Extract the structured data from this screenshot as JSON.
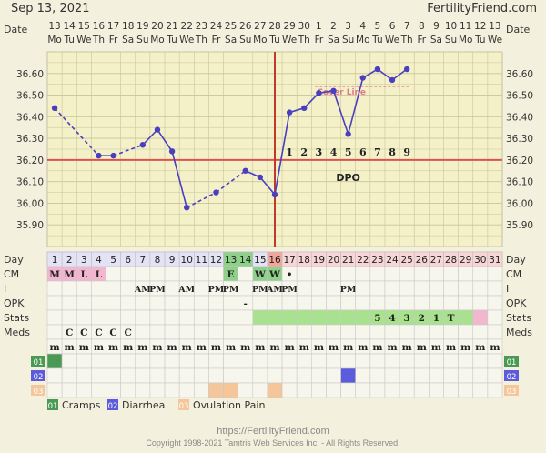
{
  "header": {
    "date": "Sep 13, 2021",
    "brand": "FertilityFriend.com"
  },
  "labels": {
    "date": "Date",
    "day": "Day",
    "cm": "CM",
    "i": "I",
    "opk": "OPK",
    "stats": "Stats",
    "meds": "Meds",
    "dpo": "DPO",
    "coverline": "Cover Line"
  },
  "chart_data": {
    "type": "line",
    "title": "",
    "ylabel": "",
    "ylim": [
      35.8,
      36.7
    ],
    "yticks": [
      "35.90",
      "36.00",
      "36.10",
      "36.20",
      "36.30",
      "36.40",
      "36.50",
      "36.60"
    ],
    "grid": true,
    "cycle_days": [
      1,
      2,
      3,
      4,
      5,
      6,
      7,
      8,
      9,
      10,
      11,
      12,
      13,
      14,
      15,
      16,
      17,
      18,
      19,
      20,
      21,
      22,
      23,
      24,
      25,
      26,
      27,
      28,
      29,
      30,
      31
    ],
    "dates": [
      "13",
      "14",
      "15",
      "16",
      "17",
      "18",
      "19",
      "20",
      "21",
      "22",
      "23",
      "24",
      "25",
      "26",
      "27",
      "28",
      "29",
      "30",
      "1",
      "2",
      "3",
      "4",
      "5",
      "6",
      "7",
      "8",
      "9",
      "10",
      "11",
      "12",
      "13"
    ],
    "weekdays": [
      "Mo",
      "Tu",
      "We",
      "Th",
      "Fr",
      "Sa",
      "Su",
      "Mo",
      "Tu",
      "We",
      "Th",
      "Fr",
      "Sa",
      "Su",
      "Mo",
      "Tu",
      "We",
      "Th",
      "Fr",
      "Sa",
      "Su",
      "Mo",
      "Tu",
      "We",
      "Th",
      "Fr",
      "Sa",
      "Su",
      "Mo",
      "Tu",
      "We"
    ],
    "temps": [
      36.44,
      null,
      null,
      36.22,
      36.22,
      null,
      36.27,
      36.34,
      36.24,
      35.98,
      null,
      36.05,
      null,
      36.15,
      36.12,
      36.04,
      36.42,
      36.44,
      36.51,
      36.52,
      36.32,
      36.58,
      36.62,
      36.57,
      36.62,
      null,
      null,
      null,
      null,
      null,
      null
    ],
    "coverline": 36.2,
    "ovulation_day": 16,
    "dpo_labels": [
      "1",
      "2",
      "3",
      "4",
      "5",
      "6",
      "7",
      "8",
      "9"
    ],
    "dpo_start_day": 17
  },
  "rows": {
    "cm": [
      "M",
      "M",
      "L",
      "L",
      "",
      "",
      "",
      "",
      "",
      "",
      "",
      "",
      "E",
      "",
      "W",
      "W",
      "•",
      "",
      "",
      "",
      "",
      "",
      "",
      "",
      "",
      "",
      "",
      "",
      "",
      "",
      ""
    ],
    "i": [
      "",
      "",
      "",
      "",
      "",
      "",
      "AM",
      "PM",
      "",
      "AM",
      "",
      "PM",
      "PM",
      "",
      "PM",
      "AM",
      "PM",
      "",
      "",
      "",
      "PM",
      "",
      "",
      "",
      "",
      "",
      "",
      "",
      "",
      "",
      ""
    ],
    "opk": [
      "",
      "",
      "",
      "",
      "",
      "",
      "",
      "",
      "",
      "",
      "",
      "",
      "",
      "-",
      "",
      "",
      "",
      "",
      "",
      "",
      "",
      "",
      "",
      "",
      "",
      "",
      "",
      "",
      "",
      "",
      ""
    ],
    "stats": [
      "",
      "",
      "",
      "",
      "",
      "",
      "",
      "",
      "",
      "",
      "",
      "",
      "",
      "",
      "",
      "",
      "",
      "",
      "",
      "",
      "",
      "",
      "5",
      "4",
      "3",
      "2",
      "1",
      "T",
      "",
      "",
      ""
    ],
    "meds": [
      "",
      "C",
      "C",
      "C",
      "C",
      "C",
      "",
      "",
      "",
      "",
      "",
      "",
      "",
      "",
      "",
      "",
      "",
      "",
      "",
      "",
      "",
      "",
      "",
      "",
      "",
      "",
      "",
      "",
      "",
      "",
      ""
    ],
    "m": [
      "m",
      "m",
      "m",
      "m",
      "m",
      "m",
      "m",
      "m",
      "m",
      "m",
      "m",
      "m",
      "m",
      "m",
      "m",
      "m",
      "m",
      "m",
      "m",
      "m",
      "m",
      "m",
      "m",
      "m",
      "m",
      "m",
      "m",
      "m",
      "m",
      "m",
      "m"
    ]
  },
  "legend": [
    {
      "code": "01",
      "label": "Cramps",
      "color": "#4a9a55"
    },
    {
      "code": "02",
      "label": "Diarrhea",
      "color": "#5b5bdc"
    },
    {
      "code": "03",
      "label": "Ovulation Pain",
      "color": "#f5c69a"
    }
  ],
  "footer": {
    "url": "https://FertilityFriend.com",
    "copyright": "Copyright 1998-2021 Tamtris Web Services Inc. - All Rights Reserved."
  },
  "colors": {
    "line": "#4a3fbf",
    "coverline": "#d9534f",
    "ovulation": "#c0392b",
    "chart_bg": "#f4f0c8",
    "row_bg": "#f7f6ec"
  }
}
